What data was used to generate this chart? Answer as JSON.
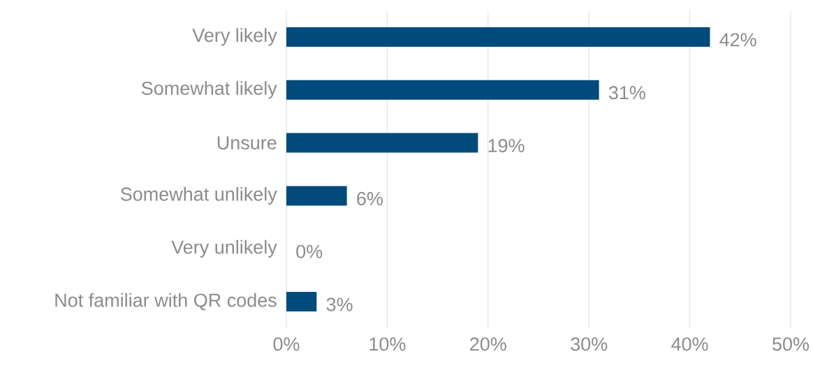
{
  "chart_data": {
    "type": "bar",
    "orientation": "horizontal",
    "categories": [
      "Very likely",
      "Somewhat likely",
      "Unsure",
      "Somewhat unlikely",
      "Very unlikely",
      "Not familiar with QR codes"
    ],
    "values": [
      42,
      31,
      19,
      6,
      0,
      3
    ],
    "value_labels": [
      "42%",
      "31%",
      "19%",
      "6%",
      "0%",
      "3%"
    ],
    "color": "#004b7b",
    "xlim": [
      0,
      50
    ],
    "xticks": [
      {
        "value": 0,
        "label": "0%"
      },
      {
        "value": 10,
        "label": "10%"
      },
      {
        "value": 20,
        "label": "20%"
      },
      {
        "value": 30,
        "label": "30%"
      },
      {
        "value": 40,
        "label": "40%"
      },
      {
        "value": 50,
        "label": "50%"
      }
    ],
    "grid": "x"
  }
}
